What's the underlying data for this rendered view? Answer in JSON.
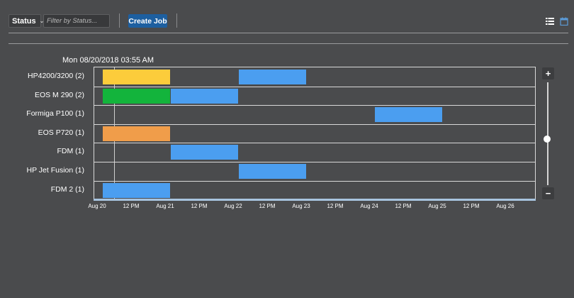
{
  "toolbar": {
    "status_label": "Status",
    "filter_placeholder": "Filter by Status...",
    "create_job_label": "Create Job",
    "view_icons": [
      "list-view-icon",
      "calendar-view-icon"
    ]
  },
  "timeline": {
    "date_header": "Mon 08/20/2018 03:55 AM",
    "start_date": "2018-08-20 00:00",
    "end_date": "2018-08-26 12:00",
    "current_time": "2018-08-20 03:55",
    "tick_labels": [
      "Aug 20",
      "12 PM",
      "Aug 21",
      "12 PM",
      "Aug 22",
      "12 PM",
      "Aug 23",
      "12 PM",
      "Aug 24",
      "12 PM",
      "Aug 25",
      "12 PM",
      "Aug 26"
    ],
    "rows": [
      {
        "label": "HP4200/3200 (2)",
        "jobs": [
          {
            "start": "2018-08-20 00:00",
            "end": "2018-08-21 00:00",
            "color": "#fccc3b"
          },
          {
            "start": "2018-08-22 00:00",
            "end": "2018-08-23 00:00",
            "color": "#4b9ef0"
          }
        ]
      },
      {
        "label": "EOS M 290 (2)",
        "jobs": [
          {
            "start": "2018-08-20 00:00",
            "end": "2018-08-21 00:00",
            "color": "#13b43c"
          },
          {
            "start": "2018-08-21 00:00",
            "end": "2018-08-22 00:00",
            "color": "#4b9ef0"
          }
        ]
      },
      {
        "label": "Formiga P100 (1)",
        "jobs": [
          {
            "start": "2018-08-24 00:00",
            "end": "2018-08-25 00:00",
            "color": "#4b9ef0"
          }
        ]
      },
      {
        "label": "EOS P720 (1)",
        "jobs": [
          {
            "start": "2018-08-20 00:00",
            "end": "2018-08-21 00:00",
            "color": "#f09d4a"
          }
        ]
      },
      {
        "label": "FDM (1)",
        "jobs": [
          {
            "start": "2018-08-21 00:00",
            "end": "2018-08-22 00:00",
            "color": "#4b9ef0"
          }
        ]
      },
      {
        "label": "HP Jet Fusion (1)",
        "jobs": [
          {
            "start": "2018-08-22 00:00",
            "end": "2018-08-23 00:00",
            "color": "#4b9ef0"
          }
        ]
      },
      {
        "label": "FDM 2 (1)",
        "jobs": [
          {
            "start": "2018-08-20 00:00",
            "end": "2018-08-21 00:00",
            "color": "#4b9ef0"
          }
        ]
      }
    ]
  },
  "zoom": {
    "plus_label": "+",
    "minus_label": "−"
  }
}
